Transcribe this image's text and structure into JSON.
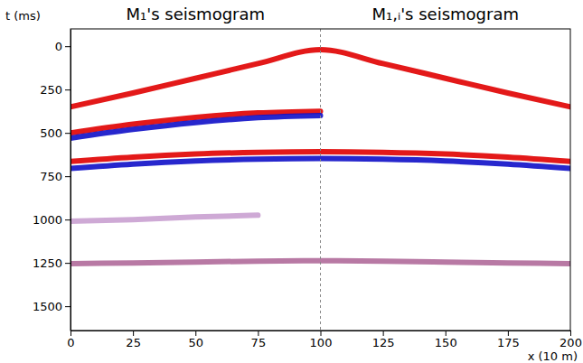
{
  "chart_data": {
    "type": "seismogram",
    "titles": [
      "M₁'s seismogram",
      "M₁,ᵢ's seismogram"
    ],
    "x_label": "x (10 m)",
    "y_label": "t (ms)",
    "xlim": [
      0,
      200
    ],
    "xticks": [
      0,
      25,
      50,
      75,
      100,
      125,
      150,
      175,
      200
    ],
    "ylim": [
      -100,
      1640
    ],
    "yticks": [
      0,
      250,
      500,
      750,
      1000,
      1250,
      1500
    ],
    "divider_x": 100,
    "x": [
      0,
      25,
      50,
      75,
      100,
      125,
      150,
      175,
      200
    ],
    "series": [
      {
        "color": "#e00000",
        "values": [
          350,
          270,
          185,
          100,
          20,
          100,
          185,
          270,
          350
        ]
      },
      {
        "color": "#e00000",
        "values": [
          500,
          450,
          410,
          385,
          375,
          null,
          null,
          null,
          null
        ]
      },
      {
        "color": "#1010c8",
        "values": [
          530,
          480,
          440,
          412,
          400,
          null,
          null,
          null,
          null
        ]
      },
      {
        "color": "#e00000",
        "values": [
          665,
          640,
          622,
          612,
          608,
          612,
          622,
          640,
          665
        ]
      },
      {
        "color": "#1010c8",
        "values": [
          705,
          680,
          662,
          652,
          648,
          652,
          662,
          680,
          705
        ]
      },
      {
        "color": "#c9a0d0",
        "values": [
          1010,
          1000,
          985,
          975,
          null,
          null,
          null,
          null,
          null
        ]
      },
      {
        "color": "#b06a9a",
        "values": [
          1255,
          1250,
          1245,
          1240,
          1238,
          1240,
          1245,
          1250,
          1255
        ]
      }
    ]
  }
}
